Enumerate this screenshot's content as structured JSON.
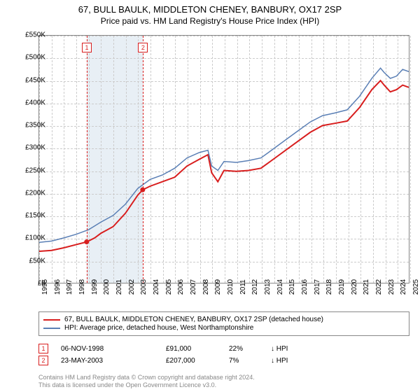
{
  "title": "67, BULL BAULK, MIDDLETON CHENEY, BANBURY, OX17 2SP",
  "subtitle": "Price paid vs. HM Land Registry's House Price Index (HPI)",
  "chart": {
    "type": "line",
    "ylim": [
      0,
      550000
    ],
    "ytick_step": 50000,
    "y_ticks": [
      "£0",
      "£50K",
      "£100K",
      "£150K",
      "£200K",
      "£250K",
      "£300K",
      "£350K",
      "£400K",
      "£450K",
      "£500K",
      "£550K"
    ],
    "x_ticks": [
      "1995",
      "1996",
      "1997",
      "1998",
      "1999",
      "2000",
      "2001",
      "2002",
      "2003",
      "2004",
      "2005",
      "2006",
      "2007",
      "2008",
      "2009",
      "2010",
      "2011",
      "2012",
      "2013",
      "2014",
      "2015",
      "2016",
      "2017",
      "2018",
      "2019",
      "2020",
      "2021",
      "2022",
      "2023",
      "2024",
      "2025"
    ],
    "background_color": "#ffffff",
    "grid_color": "#cccccc",
    "band": {
      "from_year": 1998.85,
      "to_year": 2003.4,
      "color": "#e8eff5"
    },
    "markers": [
      {
        "n": "1",
        "year": 1998.85,
        "color": "#d81e1e"
      },
      {
        "n": "2",
        "year": 2003.4,
        "color": "#d81e1e"
      }
    ],
    "series": [
      {
        "name": "address",
        "color": "#d81e1e",
        "width": 2,
        "points": [
          [
            1995.0,
            70000
          ],
          [
            1996.0,
            72000
          ],
          [
            1997.0,
            78000
          ],
          [
            1998.0,
            85000
          ],
          [
            1998.85,
            91000
          ],
          [
            1999.5,
            100000
          ],
          [
            2000.0,
            110000
          ],
          [
            2001.0,
            125000
          ],
          [
            2002.0,
            155000
          ],
          [
            2003.0,
            195000
          ],
          [
            2003.4,
            207000
          ],
          [
            2004.0,
            215000
          ],
          [
            2005.0,
            225000
          ],
          [
            2006.0,
            235000
          ],
          [
            2007.0,
            260000
          ],
          [
            2008.0,
            275000
          ],
          [
            2008.7,
            285000
          ],
          [
            2009.0,
            245000
          ],
          [
            2009.5,
            225000
          ],
          [
            2010.0,
            250000
          ],
          [
            2011.0,
            248000
          ],
          [
            2012.0,
            250000
          ],
          [
            2013.0,
            255000
          ],
          [
            2014.0,
            275000
          ],
          [
            2015.0,
            295000
          ],
          [
            2016.0,
            315000
          ],
          [
            2017.0,
            335000
          ],
          [
            2018.0,
            350000
          ],
          [
            2019.0,
            355000
          ],
          [
            2020.0,
            360000
          ],
          [
            2021.0,
            390000
          ],
          [
            2022.0,
            430000
          ],
          [
            2022.7,
            450000
          ],
          [
            2023.0,
            440000
          ],
          [
            2023.5,
            425000
          ],
          [
            2024.0,
            430000
          ],
          [
            2024.5,
            440000
          ],
          [
            2025.0,
            435000
          ]
        ],
        "dots": [
          [
            1998.85,
            91000
          ],
          [
            2003.4,
            207000
          ]
        ]
      },
      {
        "name": "hpi",
        "color": "#5a7fb5",
        "width": 1.5,
        "points": [
          [
            1995.0,
            90000
          ],
          [
            1996.0,
            93000
          ],
          [
            1997.0,
            100000
          ],
          [
            1998.0,
            108000
          ],
          [
            1999.0,
            118000
          ],
          [
            2000.0,
            135000
          ],
          [
            2001.0,
            150000
          ],
          [
            2002.0,
            175000
          ],
          [
            2003.0,
            210000
          ],
          [
            2004.0,
            230000
          ],
          [
            2005.0,
            240000
          ],
          [
            2006.0,
            255000
          ],
          [
            2007.0,
            278000
          ],
          [
            2008.0,
            290000
          ],
          [
            2008.7,
            295000
          ],
          [
            2009.0,
            260000
          ],
          [
            2009.5,
            250000
          ],
          [
            2010.0,
            270000
          ],
          [
            2011.0,
            268000
          ],
          [
            2012.0,
            272000
          ],
          [
            2013.0,
            278000
          ],
          [
            2014.0,
            298000
          ],
          [
            2015.0,
            318000
          ],
          [
            2016.0,
            338000
          ],
          [
            2017.0,
            358000
          ],
          [
            2018.0,
            372000
          ],
          [
            2019.0,
            378000
          ],
          [
            2020.0,
            385000
          ],
          [
            2021.0,
            415000
          ],
          [
            2022.0,
            455000
          ],
          [
            2022.7,
            478000
          ],
          [
            2023.0,
            468000
          ],
          [
            2023.5,
            455000
          ],
          [
            2024.0,
            460000
          ],
          [
            2024.5,
            475000
          ],
          [
            2025.0,
            470000
          ]
        ]
      }
    ]
  },
  "legend": [
    {
      "color": "#d81e1e",
      "label": "67, BULL BAULK, MIDDLETON CHENEY, BANBURY, OX17 2SP (detached house)"
    },
    {
      "color": "#5a7fb5",
      "label": "HPI: Average price, detached house, West Northamptonshire"
    }
  ],
  "transactions": [
    {
      "n": "1",
      "color": "#d81e1e",
      "date": "06-NOV-1998",
      "price": "£91,000",
      "pct": "22%",
      "arrow": "↓",
      "ref": "HPI"
    },
    {
      "n": "2",
      "color": "#d81e1e",
      "date": "23-MAY-2003",
      "price": "£207,000",
      "pct": "7%",
      "arrow": "↓",
      "ref": "HPI"
    }
  ],
  "license": {
    "line1": "Contains HM Land Registry data © Crown copyright and database right 2024.",
    "line2": "This data is licensed under the Open Government Licence v3.0."
  }
}
